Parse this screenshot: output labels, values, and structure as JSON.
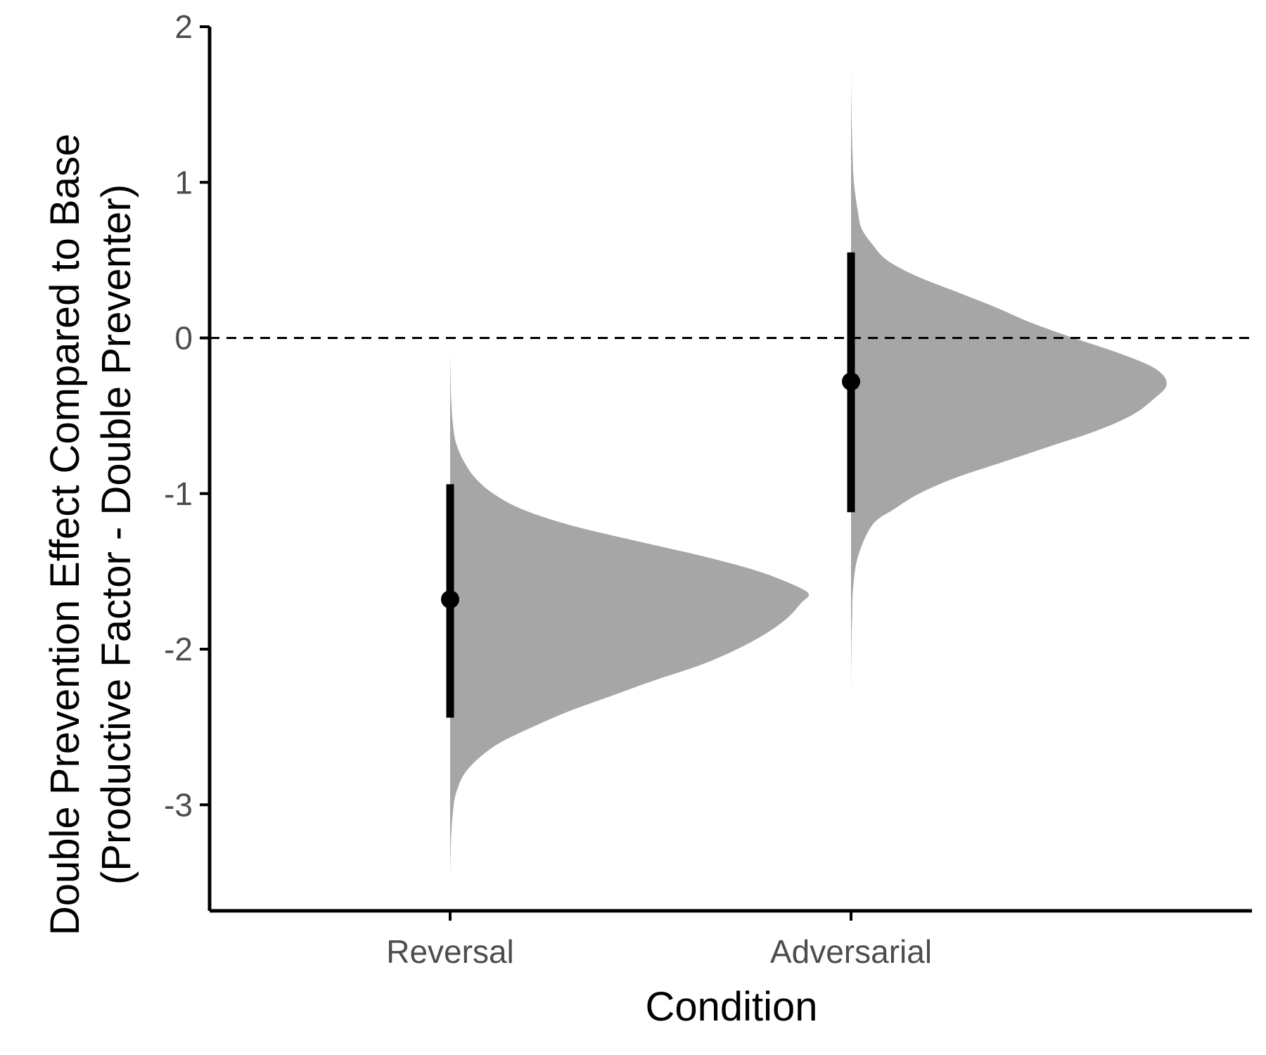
{
  "chart_data": {
    "type": "half-violin",
    "xlabel": "Condition",
    "ylabel_line1": "Double Prevention Effect Compared to Base",
    "ylabel_line2": "(Productive Factor - Double Preventer)",
    "categories": [
      "Reversal",
      "Adversarial"
    ],
    "ylim": [
      -3.7,
      2.0
    ],
    "yticks": [
      2,
      1,
      0,
      -1,
      -2,
      -3
    ],
    "ytick_labels": [
      "2",
      "1",
      "0",
      "-1",
      "-2",
      "-3"
    ],
    "reference_line": {
      "y": 0,
      "style": "dashed",
      "color": "#000000"
    },
    "grid": false,
    "legend": "none",
    "fill_color": "#a6a6a6",
    "point_color": "#000000",
    "series": [
      {
        "category": "Reversal",
        "point_estimate": -1.68,
        "interval": [
          -2.44,
          -0.94
        ],
        "density_max": 1.0,
        "density": [
          [
            -3.45,
            0.0
          ],
          [
            -3.2,
            0.003
          ],
          [
            -3.0,
            0.01
          ],
          [
            -2.9,
            0.02
          ],
          [
            -2.8,
            0.04
          ],
          [
            -2.7,
            0.08
          ],
          [
            -2.6,
            0.14
          ],
          [
            -2.5,
            0.23
          ],
          [
            -2.4,
            0.33
          ],
          [
            -2.3,
            0.45
          ],
          [
            -2.2,
            0.57
          ],
          [
            -2.1,
            0.7
          ],
          [
            -2.0,
            0.8
          ],
          [
            -1.9,
            0.88
          ],
          [
            -1.8,
            0.94
          ],
          [
            -1.7,
            0.98
          ],
          [
            -1.65,
            1.0
          ],
          [
            -1.6,
            0.97
          ],
          [
            -1.5,
            0.86
          ],
          [
            -1.4,
            0.7
          ],
          [
            -1.3,
            0.51
          ],
          [
            -1.2,
            0.33
          ],
          [
            -1.1,
            0.2
          ],
          [
            -1.0,
            0.12
          ],
          [
            -0.9,
            0.07
          ],
          [
            -0.8,
            0.04
          ],
          [
            -0.7,
            0.02
          ],
          [
            -0.6,
            0.01
          ],
          [
            -0.4,
            0.003
          ],
          [
            -0.1,
            0.0
          ]
        ]
      },
      {
        "category": "Adversarial",
        "point_estimate": -0.28,
        "interval": [
          -1.12,
          0.55
        ],
        "density_max": 0.88,
        "density": [
          [
            -2.3,
            0.0
          ],
          [
            -2.0,
            0.001
          ],
          [
            -1.8,
            0.003
          ],
          [
            -1.6,
            0.006
          ],
          [
            -1.4,
            0.02
          ],
          [
            -1.2,
            0.06
          ],
          [
            -1.1,
            0.12
          ],
          [
            -1.0,
            0.19
          ],
          [
            -0.9,
            0.29
          ],
          [
            -0.8,
            0.42
          ],
          [
            -0.7,
            0.55
          ],
          [
            -0.6,
            0.68
          ],
          [
            -0.5,
            0.78
          ],
          [
            -0.4,
            0.84
          ],
          [
            -0.3,
            0.88
          ],
          [
            -0.2,
            0.85
          ],
          [
            -0.1,
            0.75
          ],
          [
            0.0,
            0.62
          ],
          [
            0.1,
            0.5
          ],
          [
            0.2,
            0.4
          ],
          [
            0.3,
            0.29
          ],
          [
            0.4,
            0.18
          ],
          [
            0.5,
            0.1
          ],
          [
            0.6,
            0.06
          ],
          [
            0.7,
            0.03
          ],
          [
            0.8,
            0.02
          ],
          [
            1.0,
            0.008
          ],
          [
            1.2,
            0.004
          ],
          [
            1.5,
            0.001
          ],
          [
            1.75,
            0.0
          ]
        ]
      }
    ]
  }
}
